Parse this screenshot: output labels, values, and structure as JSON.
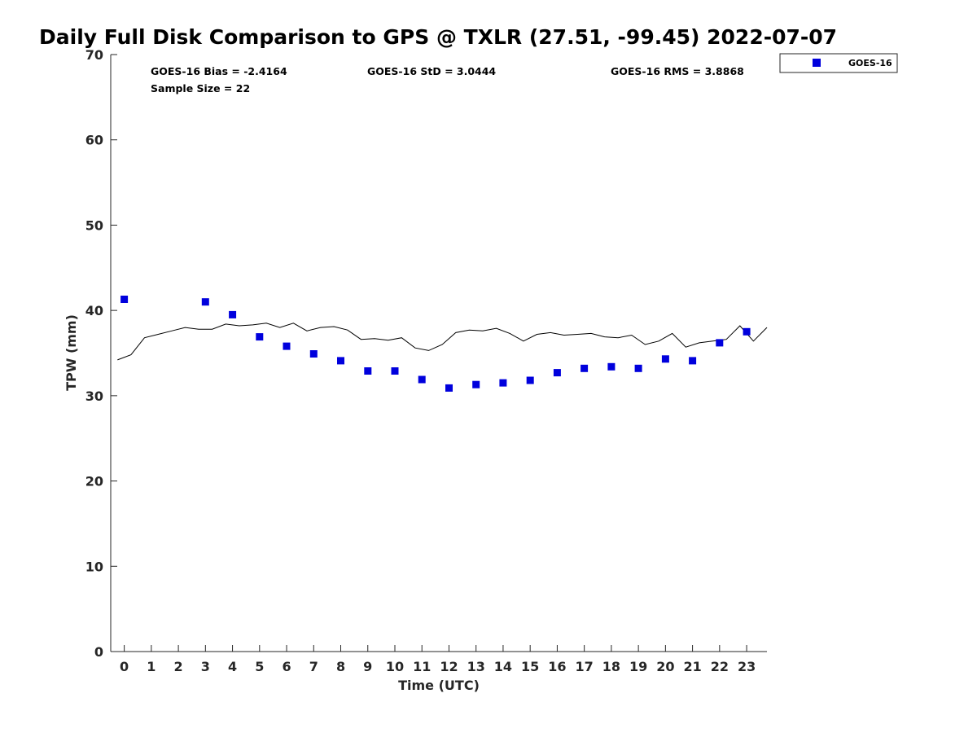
{
  "chart_data": {
    "type": "scatter",
    "title": "Daily Full Disk Comparison to GPS @ TXLR (27.51, -99.45) 2022-07-07",
    "xlabel": "Time (UTC)",
    "ylabel": "TPW (mm)",
    "xlim": [
      -0.5,
      23.75
    ],
    "ylim": [
      0,
      70
    ],
    "x_ticks": [
      "0",
      "1",
      "2",
      "3",
      "4",
      "5",
      "6",
      "7",
      "8",
      "9",
      "10",
      "11",
      "12",
      "13",
      "14",
      "15",
      "16",
      "17",
      "18",
      "19",
      "20",
      "21",
      "22",
      "23"
    ],
    "y_ticks": [
      "0",
      "10",
      "20",
      "30",
      "40",
      "50",
      "60",
      "70"
    ],
    "grid": false,
    "legend": {
      "position": "outside-top-right",
      "entries": [
        "GOES-16"
      ]
    },
    "stats": {
      "bias": "GOES-16 Bias = -2.4164",
      "std": "GOES-16 StD = 3.0444",
      "rms": "GOES-16 RMS = 3.8868",
      "sample_size": "Sample Size = 22"
    },
    "series": [
      {
        "name": "GOES-16",
        "kind": "scatter",
        "marker": "square",
        "color": "#0000dd",
        "x": [
          0,
          3,
          4,
          5,
          6,
          7,
          8,
          9,
          10,
          11,
          12,
          13,
          14,
          15,
          16,
          17,
          18,
          19,
          20,
          21,
          22,
          23
        ],
        "y": [
          41.3,
          41.0,
          39.5,
          36.9,
          35.8,
          34.9,
          34.1,
          32.9,
          32.9,
          31.9,
          30.9,
          31.3,
          31.5,
          31.8,
          32.7,
          33.2,
          33.4,
          33.2,
          34.3,
          34.1,
          36.2,
          37.5
        ]
      },
      {
        "kind": "line",
        "color": "#000000",
        "x": [
          -0.25,
          0.25,
          0.75,
          1.25,
          1.75,
          2.25,
          2.75,
          3.25,
          3.75,
          4.25,
          4.75,
          5.25,
          5.75,
          6.25,
          6.75,
          7.25,
          7.75,
          8.25,
          8.75,
          9.25,
          9.75,
          10.25,
          10.75,
          11.25,
          11.75,
          12.25,
          12.75,
          13.25,
          13.75,
          14.25,
          14.75,
          15.25,
          15.75,
          16.25,
          16.75,
          17.25,
          17.75,
          18.25,
          18.75,
          19.25,
          19.75,
          20.25,
          20.75,
          21.25,
          21.75,
          22.25,
          22.75,
          23.25,
          23.75
        ],
        "y": [
          34.2,
          34.8,
          36.8,
          37.2,
          37.6,
          38.0,
          37.8,
          37.8,
          38.4,
          38.2,
          38.3,
          38.5,
          38.0,
          38.5,
          37.6,
          38.0,
          38.1,
          37.7,
          36.6,
          36.7,
          36.5,
          36.8,
          35.6,
          35.3,
          36.0,
          37.4,
          37.7,
          37.6,
          37.9,
          37.3,
          36.4,
          37.2,
          37.4,
          37.1,
          37.2,
          37.3,
          36.9,
          36.8,
          37.1,
          36.0,
          36.4,
          37.3,
          35.7,
          36.2,
          36.4,
          36.6,
          38.2,
          36.4,
          38.0
        ]
      }
    ]
  }
}
